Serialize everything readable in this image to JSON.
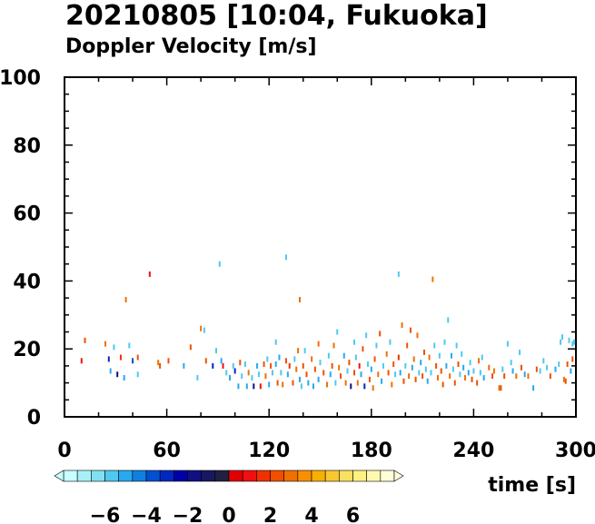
{
  "chart_data": {
    "type": "scatter",
    "title": "20210805 [10:04, Fukuoka]",
    "subtitle": "Doppler Velocity [m/s]",
    "xlabel": "time [s]",
    "ylabel": "",
    "xlim": [
      0,
      300
    ],
    "ylim": [
      0,
      100
    ],
    "x_ticks": [
      0,
      60,
      120,
      180,
      240,
      300
    ],
    "y_ticks": [
      0,
      20,
      40,
      60,
      80,
      100
    ],
    "grid": false,
    "colorbar": {
      "range": [
        -8,
        8
      ],
      "ticks": [
        -6,
        -4,
        -2,
        0,
        2,
        4,
        6
      ],
      "tick_labels": [
        "−6",
        "−4",
        "−2",
        "0",
        "2",
        "4",
        "6"
      ],
      "colors": [
        "#c8ffff",
        "#a8f0f8",
        "#80e0f0",
        "#50c8f0",
        "#28a8f0",
        "#1080e0",
        "#0050d0",
        "#0028c0",
        "#0000a8",
        "#101080",
        "#181860",
        "#202040",
        "#e00000",
        "#f01010",
        "#f03000",
        "#f05000",
        "#f07000",
        "#f89000",
        "#f8b000",
        "#f8c830",
        "#f8e060",
        "#fff080",
        "#fff8b0",
        "#fffcd8"
      ]
    },
    "points": [
      [
        10,
        16.5,
        1.2
      ],
      [
        12,
        22.5,
        2.5
      ],
      [
        24,
        21.5,
        3
      ],
      [
        26,
        17,
        -3
      ],
      [
        27,
        13.5,
        -5
      ],
      [
        29,
        20.5,
        -6
      ],
      [
        31,
        12.5,
        -2
      ],
      [
        33,
        17.5,
        1.5
      ],
      [
        35,
        11.5,
        -5
      ],
      [
        36,
        34.5,
        3
      ],
      [
        38,
        21,
        -6
      ],
      [
        40,
        16.5,
        -4
      ],
      [
        43,
        17.5,
        2
      ],
      [
        43,
        12.5,
        -6
      ],
      [
        50,
        42,
        1
      ],
      [
        55,
        16,
        3
      ],
      [
        56,
        15,
        2.5
      ],
      [
        61,
        16.5,
        2
      ],
      [
        70,
        15,
        -5
      ],
      [
        74,
        20.5,
        2
      ],
      [
        78,
        11.5,
        -6
      ],
      [
        80,
        26,
        3
      ],
      [
        82,
        25.5,
        -6
      ],
      [
        83,
        16.5,
        2.5
      ],
      [
        87,
        15,
        -3
      ],
      [
        89,
        19.5,
        -6
      ],
      [
        91,
        45,
        -6
      ],
      [
        92,
        16.5,
        -5
      ],
      [
        93,
        15,
        1
      ],
      [
        95,
        13,
        -6
      ],
      [
        97,
        11.5,
        -5
      ],
      [
        99,
        15,
        -6
      ],
      [
        100,
        13.5,
        -3
      ],
      [
        102,
        9,
        -5
      ],
      [
        103,
        16,
        2
      ],
      [
        104,
        12,
        -6
      ],
      [
        106,
        15.5,
        -6
      ],
      [
        107,
        9,
        -5
      ],
      [
        108,
        13,
        3
      ],
      [
        110,
        11.5,
        -6
      ],
      [
        111,
        9,
        -2
      ],
      [
        113,
        15,
        -5
      ],
      [
        114,
        12.5,
        -6
      ],
      [
        115,
        9,
        1
      ],
      [
        117,
        15.5,
        2
      ],
      [
        118,
        12,
        3
      ],
      [
        119,
        17,
        -6
      ],
      [
        120,
        9.5,
        -5
      ],
      [
        121,
        15,
        2.5
      ],
      [
        122,
        13,
        -6
      ],
      [
        124,
        22,
        -6
      ],
      [
        124,
        15.5,
        -5
      ],
      [
        125,
        10,
        2
      ],
      [
        126,
        17.5,
        -5
      ],
      [
        127,
        13,
        -6
      ],
      [
        128,
        9.5,
        3
      ],
      [
        130,
        47,
        -6
      ],
      [
        130,
        16.5,
        2.5
      ],
      [
        131,
        12.5,
        -5
      ],
      [
        132,
        15,
        1.5
      ],
      [
        134,
        10,
        2
      ],
      [
        135,
        17,
        -6
      ],
      [
        136,
        14,
        3
      ],
      [
        137,
        19.5,
        3
      ],
      [
        138,
        34.5,
        3
      ],
      [
        138,
        11,
        -5
      ],
      [
        139,
        9,
        -6
      ],
      [
        140,
        15,
        2
      ],
      [
        141,
        19.5,
        -6
      ],
      [
        142,
        12.5,
        2
      ],
      [
        143,
        10,
        -5
      ],
      [
        145,
        17,
        3
      ],
      [
        146,
        9,
        -5
      ],
      [
        147,
        14,
        2
      ],
      [
        149,
        21.5,
        3
      ],
      [
        149,
        11,
        -5
      ],
      [
        150,
        16,
        -6
      ],
      [
        152,
        13,
        2.5
      ],
      [
        154,
        9.5,
        3
      ],
      [
        155,
        18,
        -6
      ],
      [
        156,
        12.5,
        -5
      ],
      [
        157,
        15,
        2
      ],
      [
        158,
        21,
        3
      ],
      [
        159,
        10,
        -6
      ],
      [
        160,
        25,
        -6
      ],
      [
        161,
        14.5,
        3
      ],
      [
        162,
        12,
        2
      ],
      [
        164,
        18,
        -5
      ],
      [
        165,
        10,
        3
      ],
      [
        166,
        13.5,
        -6
      ],
      [
        167,
        16,
        2
      ],
      [
        168,
        9,
        -2
      ],
      [
        170,
        22,
        -6
      ],
      [
        170,
        13,
        2.5
      ],
      [
        171,
        17.5,
        -6
      ],
      [
        172,
        10,
        3
      ],
      [
        173,
        15,
        1
      ],
      [
        174,
        12.5,
        -5
      ],
      [
        175,
        20,
        2
      ],
      [
        176,
        9,
        -3
      ],
      [
        177,
        24,
        -6
      ],
      [
        178,
        15.5,
        -6
      ],
      [
        179,
        11,
        2
      ],
      [
        180,
        14,
        -5
      ],
      [
        181,
        8.5,
        3
      ],
      [
        182,
        17,
        2.5
      ],
      [
        183,
        21,
        -6
      ],
      [
        184,
        12.5,
        3
      ],
      [
        185,
        24.5,
        2
      ],
      [
        186,
        10.5,
        -5
      ],
      [
        187,
        15,
        -6
      ],
      [
        189,
        18.5,
        3
      ],
      [
        190,
        13,
        2
      ],
      [
        191,
        22,
        -6
      ],
      [
        192,
        9.5,
        3
      ],
      [
        193,
        15.5,
        2
      ],
      [
        194,
        12.5,
        -6
      ],
      [
        196,
        42,
        -6
      ],
      [
        196,
        17.5,
        1.5
      ],
      [
        197,
        13,
        -5
      ],
      [
        198,
        27,
        3
      ],
      [
        199,
        10.5,
        2
      ],
      [
        200,
        15,
        -6
      ],
      [
        201,
        21,
        2.5
      ],
      [
        202,
        12,
        3
      ],
      [
        203,
        25.5,
        2
      ],
      [
        204,
        14.5,
        -5
      ],
      [
        205,
        17,
        3
      ],
      [
        206,
        11,
        2
      ],
      [
        207,
        24,
        3
      ],
      [
        208,
        13,
        -6
      ],
      [
        209,
        16,
        -5
      ],
      [
        210,
        12,
        2
      ],
      [
        211,
        19,
        2.5
      ],
      [
        212,
        14,
        -6
      ],
      [
        213,
        10.5,
        -5
      ],
      [
        214,
        17.5,
        3
      ],
      [
        215,
        13,
        -6
      ],
      [
        216,
        40.5,
        3
      ],
      [
        217,
        21,
        -6
      ],
      [
        218,
        15,
        2
      ],
      [
        219,
        11.5,
        3
      ],
      [
        220,
        18,
        -6
      ],
      [
        221,
        13.5,
        2.5
      ],
      [
        222,
        9.5,
        2
      ],
      [
        223,
        22,
        -6
      ],
      [
        224,
        15,
        -5
      ],
      [
        225,
        28.5,
        -6
      ],
      [
        226,
        12,
        3
      ],
      [
        227,
        18,
        -5
      ],
      [
        228,
        14,
        -6
      ],
      [
        229,
        10,
        2
      ],
      [
        230,
        21,
        -6
      ],
      [
        231,
        15.5,
        2.5
      ],
      [
        232,
        12.5,
        -6
      ],
      [
        233,
        18.5,
        -6
      ],
      [
        234,
        14.5,
        -5
      ],
      [
        235,
        11.5,
        3
      ],
      [
        237,
        13,
        -5
      ],
      [
        238,
        16,
        -6
      ],
      [
        239,
        11,
        2
      ],
      [
        240,
        13.5,
        -6
      ],
      [
        242,
        10,
        2.5
      ],
      [
        243,
        16.5,
        3
      ],
      [
        244,
        13,
        -6
      ],
      [
        245,
        17.5,
        -6
      ],
      [
        246,
        11.5,
        -5
      ],
      [
        249,
        14.5,
        3
      ],
      [
        251,
        12,
        2
      ],
      [
        252,
        13.5,
        3
      ],
      [
        255,
        8.5,
        3
      ],
      [
        256,
        8.5,
        2.5
      ],
      [
        257,
        14,
        -6
      ],
      [
        258,
        12,
        2
      ],
      [
        260,
        21.5,
        -6
      ],
      [
        262,
        16,
        -6
      ],
      [
        263,
        13.5,
        -5
      ],
      [
        265,
        12,
        3
      ],
      [
        267,
        19,
        -6
      ],
      [
        268,
        14.5,
        2
      ],
      [
        270,
        12.5,
        -5
      ],
      [
        272,
        12,
        3
      ],
      [
        275,
        8.5,
        -5
      ],
      [
        277,
        14,
        2
      ],
      [
        279,
        13.5,
        -6
      ],
      [
        281,
        16.5,
        -6
      ],
      [
        283,
        14.5,
        -6
      ],
      [
        285,
        12,
        2
      ],
      [
        288,
        14,
        -5
      ],
      [
        290,
        15.5,
        -6
      ],
      [
        291,
        22,
        -6
      ],
      [
        292,
        23.5,
        -6
      ],
      [
        293,
        11,
        3
      ],
      [
        294,
        10.5,
        2.5
      ],
      [
        295,
        15.5,
        2
      ],
      [
        296,
        22.5,
        -6
      ],
      [
        297,
        13.5,
        -5
      ],
      [
        298,
        21.5,
        -6
      ],
      [
        299,
        22,
        -6
      ],
      [
        298,
        17,
        2
      ]
    ]
  }
}
